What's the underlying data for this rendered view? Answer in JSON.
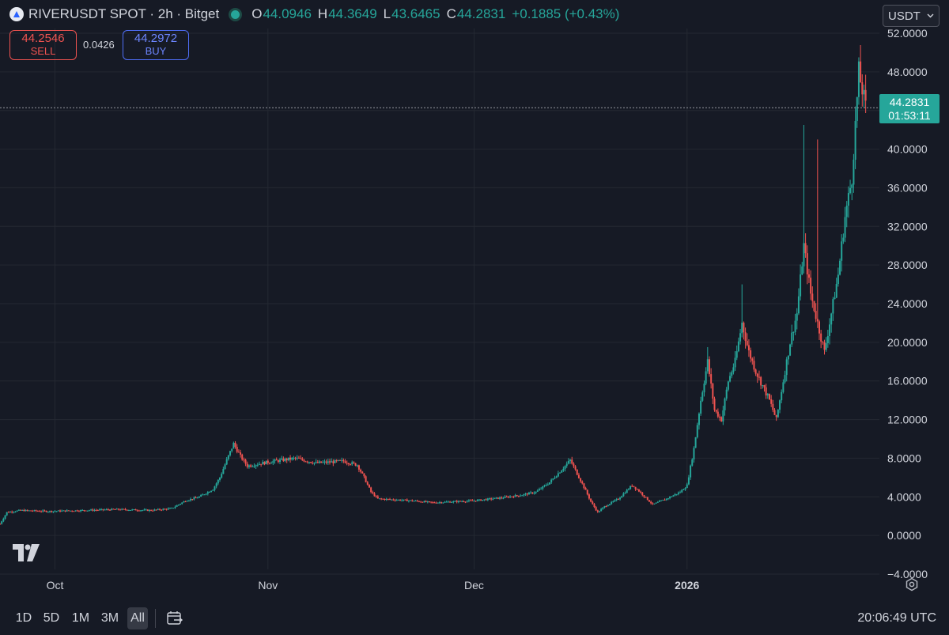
{
  "header": {
    "symbol": "RIVERUSDT SPOT · 2h · Bitget",
    "open_label": "O",
    "open": "44.0946",
    "high_label": "H",
    "high": "44.3649",
    "low_label": "L",
    "low": "43.6465",
    "close_label": "C",
    "close": "44.2831",
    "change": "+0.1885 (+0.43%)",
    "currency": "USDT"
  },
  "trade": {
    "sell_price": "44.2546",
    "sell_label": "SELL",
    "spread": "0.0426",
    "buy_price": "44.2972",
    "buy_label": "BUY"
  },
  "price_tag": {
    "price": "44.2831",
    "countdown": "01:53:11"
  },
  "bottom": {
    "ranges": [
      "1D",
      "5D",
      "1M",
      "3M",
      "All"
    ],
    "active_range": "All",
    "time": "20:06:49 UTC"
  },
  "colors": {
    "up": "#26a69a",
    "down": "#ef5350",
    "background": "#161a25",
    "grid": "#242832"
  },
  "icons": [
    "symbol-logo-icon",
    "status-dot-icon",
    "chevron-down-icon",
    "tradingview-logo-icon",
    "settings-icon",
    "calendar-range-icon"
  ],
  "chart_data": {
    "type": "candlestick",
    "y_ticks": [
      "52.0000",
      "48.0000",
      "44.0000",
      "40.0000",
      "36.0000",
      "32.0000",
      "28.0000",
      "24.0000",
      "20.0000",
      "16.0000",
      "12.0000",
      "8.0000",
      "4.0000",
      "0.0000",
      "−4.0000"
    ],
    "ylim": [
      -4,
      52
    ],
    "x_ticks": [
      {
        "label": "Oct",
        "date": "2025-10-01"
      },
      {
        "label": "Nov",
        "date": "2025-11-01"
      },
      {
        "label": "Dec",
        "date": "2025-12-01"
      },
      {
        "label": "2026",
        "date": "2026-01-01"
      }
    ],
    "xlim": [
      "2025-09-23",
      "2026-01-29"
    ],
    "last_price": 44.2831,
    "price_series": [
      [
        "2025-09-23",
        1.2
      ],
      [
        "2025-09-24",
        2.4
      ],
      [
        "2025-09-26",
        2.6
      ],
      [
        "2025-09-30",
        2.5
      ],
      [
        "2025-10-05",
        2.6
      ],
      [
        "2025-10-10",
        2.7
      ],
      [
        "2025-10-15",
        2.6
      ],
      [
        "2025-10-18",
        2.8
      ],
      [
        "2025-10-20",
        3.6
      ],
      [
        "2025-10-22",
        4.0
      ],
      [
        "2025-10-24",
        4.8
      ],
      [
        "2025-10-25",
        6.0
      ],
      [
        "2025-10-26",
        7.8
      ],
      [
        "2025-10-27",
        9.5
      ],
      [
        "2025-10-28",
        8.2
      ],
      [
        "2025-10-29",
        7.2
      ],
      [
        "2025-11-01",
        7.6
      ],
      [
        "2025-11-05",
        8.0
      ],
      [
        "2025-11-08",
        7.5
      ],
      [
        "2025-11-12",
        7.7
      ],
      [
        "2025-11-14",
        7.3
      ],
      [
        "2025-11-15",
        6.0
      ],
      [
        "2025-11-16",
        4.5
      ],
      [
        "2025-11-17",
        3.8
      ],
      [
        "2025-11-22",
        3.6
      ],
      [
        "2025-11-25",
        3.4
      ],
      [
        "2025-12-01",
        3.6
      ],
      [
        "2025-12-05",
        3.9
      ],
      [
        "2025-12-08",
        4.2
      ],
      [
        "2025-12-10",
        4.5
      ],
      [
        "2025-12-12",
        5.5
      ],
      [
        "2025-12-14",
        7.0
      ],
      [
        "2025-12-15",
        7.8
      ],
      [
        "2025-12-16",
        6.4
      ],
      [
        "2025-12-17",
        5.0
      ],
      [
        "2025-12-18",
        3.5
      ],
      [
        "2025-12-19",
        2.4
      ],
      [
        "2025-12-20",
        3.0
      ],
      [
        "2025-12-22",
        3.8
      ],
      [
        "2025-12-24",
        5.2
      ],
      [
        "2025-12-25",
        4.6
      ],
      [
        "2025-12-27",
        3.2
      ],
      [
        "2025-12-29",
        3.8
      ],
      [
        "2025-12-31",
        4.5
      ],
      [
        "2026-01-01",
        5.2
      ],
      [
        "2026-01-02",
        9.0
      ],
      [
        "2026-01-03",
        14.0
      ],
      [
        "2026-01-04",
        18.0
      ],
      [
        "2026-01-05",
        13.0
      ],
      [
        "2026-01-06",
        12.0
      ],
      [
        "2026-01-07",
        16.0
      ],
      [
        "2026-01-08",
        18.0
      ],
      [
        "2026-01-09",
        22.0
      ],
      [
        "2026-01-10",
        19.0
      ],
      [
        "2026-01-11",
        17.0
      ],
      [
        "2026-01-13",
        14.0
      ],
      [
        "2026-01-14",
        12.0
      ],
      [
        "2026-01-15",
        16.0
      ],
      [
        "2026-01-16",
        20.0
      ],
      [
        "2026-01-17",
        23.0
      ],
      [
        "2026-01-18",
        30.0
      ],
      [
        "2026-01-19",
        25.0
      ],
      [
        "2026-01-20",
        22.0
      ],
      [
        "2026-01-21",
        19.0
      ],
      [
        "2026-01-22",
        23.0
      ],
      [
        "2026-01-23",
        27.0
      ],
      [
        "2026-01-24",
        33.0
      ],
      [
        "2026-01-25",
        37.0
      ],
      [
        "2026-01-26",
        48.0
      ],
      [
        "2026-01-27",
        44.28
      ]
    ],
    "spikes": [
      [
        "2026-01-04",
        19.5
      ],
      [
        "2026-01-09",
        26.0
      ],
      [
        "2026-01-18",
        42.5
      ],
      [
        "2026-01-20",
        41.0
      ],
      [
        "2026-01-26",
        49.0
      ]
    ]
  }
}
